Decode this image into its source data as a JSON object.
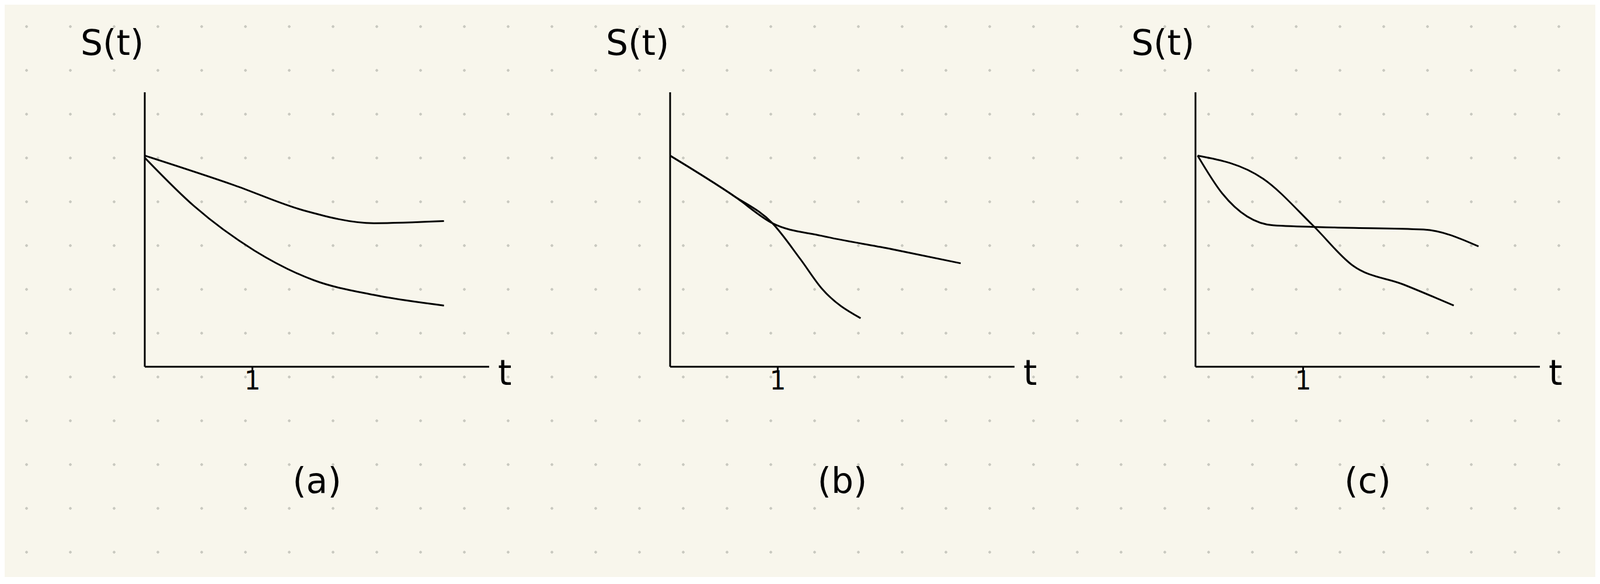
{
  "chart_data": [
    {
      "type": "line",
      "title": "(a)",
      "x_label": "t",
      "y_label": "S(t)",
      "xlim": [
        0,
        3.2
      ],
      "ylim": [
        0,
        1.3
      ],
      "xticks": [
        1
      ],
      "yticks": [],
      "tick_labels": "x",
      "series": [
        {
          "color": "#000000",
          "x": [
            0,
            0.83,
            1.48,
            2.13,
            2.78
          ],
          "values": [
            1.0,
            0.86,
            0.74,
            0.68,
            0.69
          ]
        },
        {
          "color": "#000000",
          "x": [
            0,
            0.46,
            1.02,
            1.57,
            2.13,
            2.78
          ],
          "values": [
            0.99,
            0.76,
            0.55,
            0.41,
            0.34,
            0.29
          ]
        }
      ]
    },
    {
      "type": "line",
      "title": "(b)",
      "x_label": "t",
      "y_label": "S(t)",
      "xlim": [
        0,
        3.2
      ],
      "ylim": [
        0,
        1.3
      ],
      "xticks": [
        1
      ],
      "yticks": [],
      "tick_labels": "x",
      "series": [
        {
          "color": "#000000",
          "x": [
            0,
            0.59,
            0.95,
            1.41,
            2.03,
            2.7
          ],
          "values": [
            1.0,
            0.81,
            0.68,
            0.62,
            0.56,
            0.49
          ]
        },
        {
          "color": "#000000",
          "x": [
            0,
            0.59,
            0.95,
            1.21,
            1.41,
            1.77
          ],
          "values": [
            1.0,
            0.81,
            0.68,
            0.51,
            0.37,
            0.23
          ]
        }
      ]
    },
    {
      "type": "line",
      "title": "(c)",
      "x_label": "t",
      "y_label": "S(t)",
      "xlim": [
        0,
        3.2
      ],
      "ylim": [
        0,
        1.3
      ],
      "xticks": [
        1
      ],
      "yticks": [],
      "tick_labels": "x",
      "series": [
        {
          "color": "#000000",
          "x": [
            0.02,
            0.63,
            1.09,
            1.46,
            1.93,
            2.4
          ],
          "values": [
            1.0,
            0.89,
            0.67,
            0.48,
            0.39,
            0.29
          ]
        },
        {
          "color": "#000000",
          "x": [
            0.02,
            0.25,
            0.72,
            1.28,
            2.12,
            2.63
          ],
          "values": [
            1.0,
            0.82,
            0.67,
            0.66,
            0.65,
            0.57
          ]
        }
      ]
    }
  ]
}
